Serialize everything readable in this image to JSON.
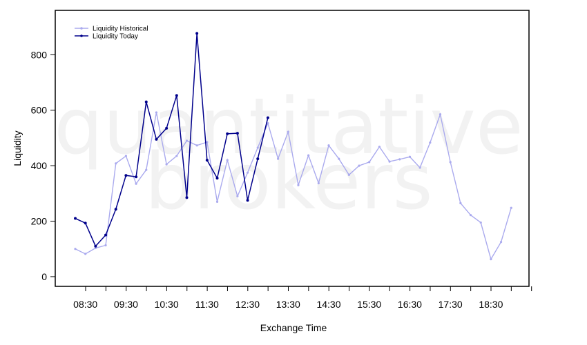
{
  "watermark": {
    "line1": "quantitative",
    "line2": "brokers"
  },
  "chart_data": {
    "type": "line",
    "title": "",
    "xlabel": "Exchange Time",
    "ylabel": "Liquidity",
    "x_start": "08:00",
    "x_step_minutes": 15,
    "x_ticks": [
      "08:30",
      "09:30",
      "10:30",
      "11:30",
      "12:30",
      "13:30",
      "14:30",
      "15:30",
      "16:30",
      "17:30",
      "18:30"
    ],
    "y_ticks": [
      0,
      200,
      400,
      600,
      800
    ],
    "ylim": [
      -35,
      960
    ],
    "grid": false,
    "legend_position": "top-left",
    "series": [
      {
        "name": "Liquidity Historical",
        "color": "#aaaaee",
        "values": [
          100,
          82,
          103,
          113,
          408,
          435,
          335,
          385,
          592,
          405,
          435,
          490,
          473,
          485,
          270,
          420,
          290,
          375,
          465,
          553,
          425,
          522,
          330,
          437,
          337,
          473,
          425,
          367,
          400,
          413,
          468,
          415,
          423,
          432,
          393,
          483,
          585,
          413,
          265,
          222,
          195,
          63,
          125,
          248
        ]
      },
      {
        "name": "Liquidity Today",
        "color": "#00008b",
        "values": [
          210,
          193,
          110,
          150,
          243,
          365,
          360,
          630,
          495,
          535,
          653,
          285,
          877,
          420,
          355,
          515,
          517,
          275,
          425,
          573
        ]
      }
    ]
  }
}
